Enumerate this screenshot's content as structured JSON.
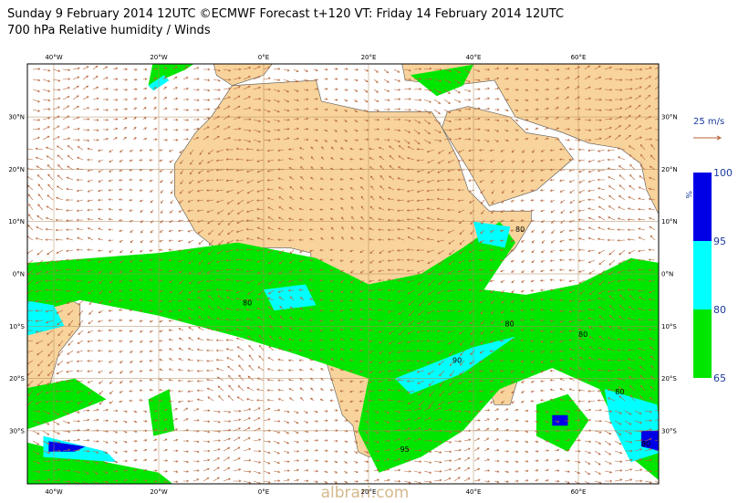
{
  "header": {
    "line1": "Sunday 9 February 2014 12UTC ©ECMWF Forecast t+120 VT: Friday 14 February 2014 12UTC",
    "line2": "700 hPa Relative humidity / Winds"
  },
  "map": {
    "lon_labels": [
      "40°W",
      "20°W",
      "0°E",
      "20°E",
      "40°E",
      "60°E"
    ],
    "lat_labels": [
      "30°N",
      "20°N",
      "10°N",
      "0°N",
      "10°S",
      "20°S",
      "30°S"
    ],
    "contour_labels": [
      80,
      80,
      80,
      80,
      90,
      80,
      80,
      95
    ]
  },
  "legend": {
    "wind_label": "25 m/s"
  },
  "colorbar": {
    "unit": "%",
    "labels": [
      100,
      95,
      80,
      65
    ]
  },
  "watermark": "albrari.com"
}
